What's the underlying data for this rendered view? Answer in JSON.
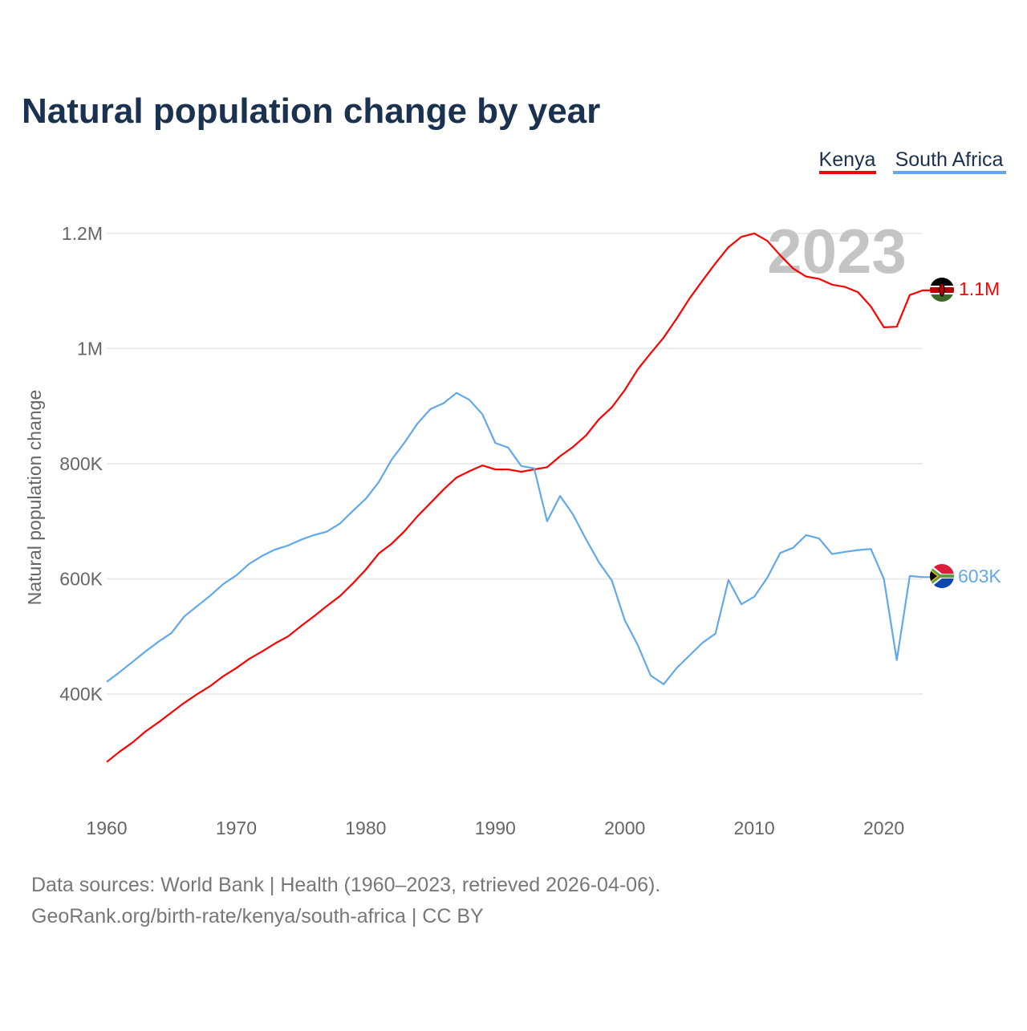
{
  "chart_data": {
    "type": "line",
    "title": "Natural population change by year",
    "ylabel": "Natural population change",
    "xlabel": "",
    "xlim": [
      1960,
      2023
    ],
    "ylim": [
      230,
      1257
    ],
    "grid": true,
    "legend_position": "top-right",
    "year_label": "2023",
    "x_ticks": [
      1960,
      1970,
      1980,
      1990,
      2000,
      2010,
      2020
    ],
    "x_tick_labels": [
      "1960",
      "1970",
      "1980",
      "1990",
      "2000",
      "2010",
      "2020"
    ],
    "y_ticks": [
      400,
      600,
      800,
      1000,
      1200
    ],
    "y_tick_labels": [
      "400K",
      "600K",
      "800K",
      "1M",
      "1.2M"
    ],
    "x": [
      1960,
      1961,
      1962,
      1963,
      1964,
      1965,
      1966,
      1967,
      1968,
      1969,
      1970,
      1971,
      1972,
      1973,
      1974,
      1975,
      1976,
      1977,
      1978,
      1979,
      1980,
      1981,
      1982,
      1983,
      1984,
      1985,
      1986,
      1987,
      1988,
      1989,
      1990,
      1991,
      1992,
      1993,
      1994,
      1995,
      1996,
      1997,
      1998,
      1999,
      2000,
      2001,
      2002,
      2003,
      2004,
      2005,
      2006,
      2007,
      2008,
      2009,
      2010,
      2011,
      2012,
      2013,
      2014,
      2015,
      2016,
      2017,
      2018,
      2019,
      2020,
      2021,
      2022,
      2023
    ],
    "series": [
      {
        "name": "Kenya",
        "color": "#ff0000",
        "end_label": "1.1M",
        "values": [
          282,
          300,
          316,
          335,
          351,
          368,
          385,
          400,
          414,
          431,
          445,
          461,
          474,
          488,
          500,
          518,
          535,
          553,
          570,
          592,
          616,
          644,
          661,
          683,
          709,
          732,
          755,
          776,
          787,
          797,
          790,
          790,
          786,
          790,
          794,
          813,
          829,
          849,
          877,
          898,
          928,
          964,
          992,
          1019,
          1052,
          1087,
          1118,
          1148,
          1176,
          1194,
          1200,
          1187,
          1162,
          1139,
          1125,
          1121,
          1111,
          1107,
          1098,
          1073,
          1037,
          1038,
          1093,
          1101
        ]
      },
      {
        "name": "South Africa",
        "color": "#62a8ec",
        "end_label": "603K",
        "values": [
          421,
          438,
          456,
          474,
          491,
          506,
          535,
          553,
          571,
          591,
          606,
          626,
          640,
          651,
          658,
          668,
          676,
          682,
          696,
          718,
          739,
          768,
          807,
          837,
          870,
          895,
          905,
          923,
          911,
          886,
          836,
          828,
          796,
          792,
          700,
          744,
          712,
          669,
          629,
          597,
          528,
          485,
          432,
          417,
          445,
          467,
          489,
          505,
          598,
          556,
          569,
          602,
          645,
          654,
          676,
          670,
          643,
          647,
          650,
          652,
          600,
          459,
          605,
          603
        ]
      }
    ]
  },
  "footer": {
    "line1": "Data sources: World Bank | Health (1960–2023, retrieved 2026-04-06).",
    "line2": "GeoRank.org/birth-rate/kenya/south-africa | CC BY"
  }
}
